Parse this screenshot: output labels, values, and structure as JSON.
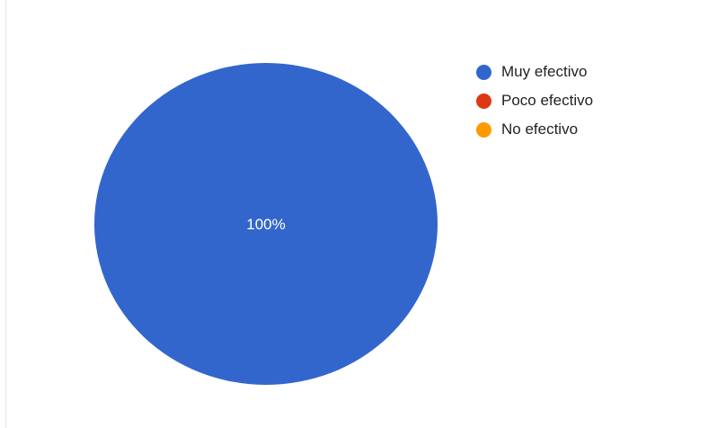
{
  "chart_data": {
    "type": "pie",
    "title": "",
    "categories": [
      "Muy efectivo",
      "Poco efectivo",
      "No efectivo"
    ],
    "values": [
      100,
      0,
      0
    ],
    "data_labels": [
      "100%"
    ],
    "colors": [
      "#3366cc",
      "#dc3912",
      "#ff9900"
    ],
    "legend_position": "right"
  }
}
